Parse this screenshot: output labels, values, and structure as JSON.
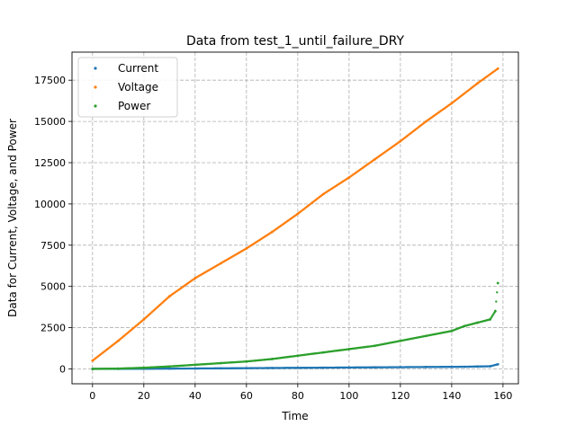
{
  "chart_data": {
    "type": "scatter",
    "title": "Data from test_1_until_failure_DRY",
    "xlabel": "Time",
    "ylabel": "Data for Current, Voltage, and Power",
    "xlim": [
      -8,
      166
    ],
    "ylim": [
      -900,
      19200
    ],
    "xticks": [
      0,
      20,
      40,
      60,
      80,
      100,
      120,
      140,
      160
    ],
    "yticks": [
      0,
      2500,
      5000,
      7500,
      10000,
      12500,
      15000,
      17500
    ],
    "grid": true,
    "legend": "top-left",
    "series": [
      {
        "name": "Current",
        "color": "#1f77b4",
        "x": [
          0,
          10,
          20,
          30,
          40,
          50,
          60,
          70,
          80,
          90,
          100,
          110,
          120,
          130,
          140,
          145,
          150,
          155,
          158
        ],
        "y": [
          0,
          5,
          10,
          18,
          25,
          35,
          45,
          55,
          65,
          75,
          85,
          95,
          105,
          115,
          125,
          130,
          145,
          160,
          280
        ]
      },
      {
        "name": "Voltage",
        "color": "#ff7f0e",
        "x": [
          0,
          10,
          20,
          30,
          40,
          50,
          60,
          70,
          80,
          90,
          100,
          110,
          120,
          130,
          140,
          150,
          158
        ],
        "y": [
          500,
          1700,
          3000,
          4400,
          5500,
          6400,
          7300,
          8300,
          9400,
          10600,
          11600,
          12700,
          13800,
          15000,
          16100,
          17300,
          18200
        ]
      },
      {
        "name": "Power",
        "color": "#2ca02c",
        "x": [
          0,
          10,
          20,
          30,
          40,
          50,
          60,
          70,
          80,
          90,
          100,
          110,
          120,
          130,
          140,
          145,
          150,
          155,
          157,
          158
        ],
        "y": [
          0,
          20,
          70,
          150,
          250,
          350,
          450,
          600,
          800,
          1000,
          1200,
          1400,
          1700,
          2000,
          2300,
          2600,
          2800,
          3000,
          3500,
          5200
        ]
      }
    ]
  }
}
